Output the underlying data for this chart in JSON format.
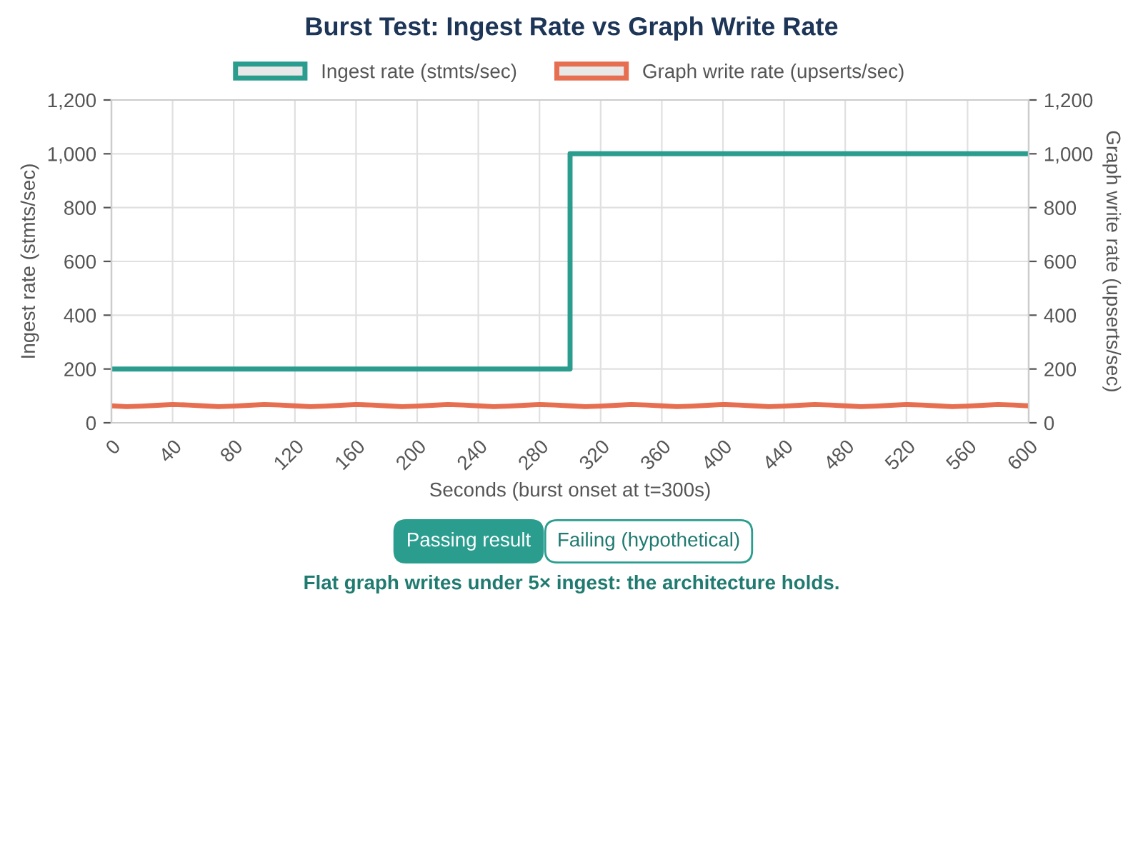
{
  "chart_data": {
    "type": "line",
    "title": "Burst Test: Ingest Rate vs Graph Write Rate",
    "xlabel": "Seconds (burst onset at t=300s)",
    "ylabel": "Ingest rate (stmts/sec)",
    "y2label": "Graph write rate (upserts/sec)",
    "series": [
      {
        "name": "Ingest rate (stmts/sec)",
        "type": "step",
        "color": "#2a9d8f",
        "x": [
          0,
          300,
          600
        ],
        "values": [
          200,
          1000,
          1000
        ]
      },
      {
        "name": "Graph write rate (upserts/sec)",
        "color": "#e76f51",
        "axis": "y2",
        "x": [
          0,
          10,
          20,
          30,
          40,
          50,
          60,
          70,
          80,
          90,
          100,
          110,
          120,
          130,
          140,
          150,
          160,
          170,
          180,
          190,
          200,
          210,
          220,
          230,
          240,
          250,
          260,
          270,
          280,
          290,
          300,
          310,
          320,
          330,
          340,
          350,
          360,
          370,
          380,
          390,
          400,
          410,
          420,
          430,
          440,
          450,
          460,
          470,
          480,
          490,
          500,
          510,
          520,
          530,
          540,
          550,
          560,
          570,
          580,
          590,
          600
        ],
        "values": [
          63,
          60,
          62,
          65,
          68,
          66,
          63,
          60,
          62,
          65,
          68,
          66,
          63,
          60,
          62,
          65,
          68,
          66,
          63,
          60,
          62,
          65,
          68,
          66,
          63,
          60,
          62,
          65,
          68,
          66,
          63,
          60,
          62,
          65,
          68,
          66,
          63,
          60,
          62,
          65,
          68,
          66,
          63,
          60,
          62,
          65,
          68,
          66,
          63,
          60,
          62,
          65,
          68,
          66,
          63,
          60,
          62,
          65,
          68,
          66,
          63
        ]
      }
    ],
    "xlim": [
      0,
      600
    ],
    "xticks": [
      0,
      40,
      80,
      120,
      160,
      200,
      240,
      280,
      320,
      360,
      400,
      440,
      480,
      520,
      560,
      600
    ],
    "ylim": [
      0,
      1200
    ],
    "yticks": [
      0,
      {
        "value": 200,
        "label": "200"
      },
      400,
      600,
      800,
      {
        "value": 1000,
        "label": "1,000"
      },
      {
        "value": 1200,
        "label": "1,200"
      }
    ],
    "y2lim": [
      0,
      1200
    ],
    "y2ticks": [
      0,
      200,
      400,
      600,
      800,
      {
        "value": 1000,
        "label": "1,000"
      },
      {
        "value": 1200,
        "label": "1,200"
      }
    ],
    "grid": true,
    "legend": "top",
    "annotations": [
      "Passing result",
      "Failing (hypothetical)",
      "Flat graph writes under 5× ingest: the architecture holds."
    ]
  }
}
